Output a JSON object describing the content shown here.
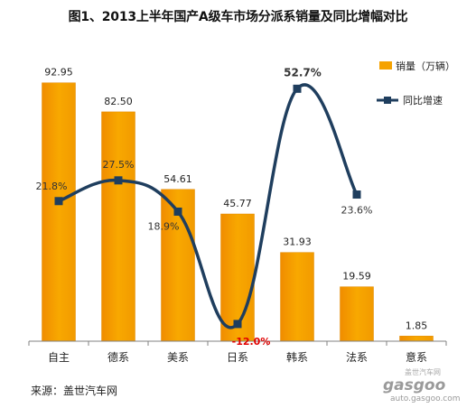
{
  "chart_data": {
    "type": "bar",
    "title": "图1、2013上半年国产A级车市场分派系销量及同比增幅对比",
    "categories": [
      "自主",
      "德系",
      "美系",
      "日系",
      "韩系",
      "法系",
      "意系"
    ],
    "series": [
      {
        "name": "销量（万辆）",
        "type": "bar",
        "axis": "left",
        "color": "#F5A200",
        "values": [
          92.95,
          82.5,
          54.61,
          45.77,
          31.93,
          19.59,
          1.85
        ],
        "labels": [
          "92.95",
          "82.50",
          "54.61",
          "45.77",
          "31.93",
          "19.59",
          "1.85"
        ]
      },
      {
        "name": "同比增速",
        "type": "line",
        "axis": "right",
        "color": "#1F3E5E",
        "smooth": true,
        "values": [
          21.8,
          27.5,
          18.9,
          -12.0,
          52.7,
          23.6,
          null
        ],
        "labels": [
          "21.8%",
          "27.5%",
          "18.9%",
          "-12.0%",
          "52.7%",
          "23.6%",
          ""
        ]
      }
    ],
    "y_left_range": [
      0,
      100
    ],
    "y_right_range": [
      -15,
      57
    ],
    "legend": "top-right",
    "grid": false
  },
  "source": "来源：盖世汽车网",
  "watermark": {
    "line1": "盖世汽车网",
    "brand": "gasgoo",
    "url": "auto.gasgoo.com"
  },
  "colors": {
    "bar": "#F5A200",
    "line": "#1F3E5E",
    "negative_label": "#E00000"
  }
}
